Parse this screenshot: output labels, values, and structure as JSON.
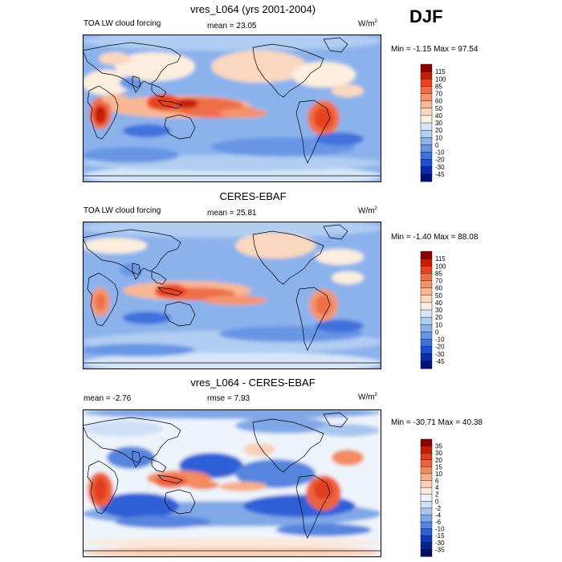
{
  "season": "DJF",
  "panels": [
    {
      "title": "vres_L064 (yrs 2001-2004)",
      "left_label": "TOA LW cloud forcing",
      "mean_label": "mean =  23.05",
      "unit_base": "W/m",
      "unit_exp": "2",
      "minmax": "Min =  -1.15 Max =  97.54",
      "levels": [
        "115",
        "100",
        "85",
        "70",
        "60",
        "50",
        "40",
        "30",
        "20",
        "10",
        "0",
        "-10",
        "-20",
        "-30",
        "-45"
      ],
      "colors": [
        "#8b0000",
        "#c81e00",
        "#e8421e",
        "#f06e46",
        "#f4946e",
        "#f8b895",
        "#fad7bf",
        "#fdeedf",
        "#d6e6f8",
        "#b1cdf2",
        "#8cb2ec",
        "#6795e4",
        "#3f71dc",
        "#1e4fd2",
        "#0a2ab0",
        "#00127a"
      ]
    },
    {
      "title": "CERES-EBAF",
      "left_label": "TOA LW cloud forcing",
      "mean_label": "mean =  25.81",
      "unit_base": "W/m",
      "unit_exp": "2",
      "minmax": "Min =  -1.40 Max =  88.08",
      "levels": [
        "115",
        "100",
        "85",
        "70",
        "60",
        "50",
        "40",
        "30",
        "20",
        "10",
        "0",
        "-10",
        "-20",
        "-30",
        "-45"
      ],
      "colors": [
        "#8b0000",
        "#c81e00",
        "#e8421e",
        "#f06e46",
        "#f4946e",
        "#f8b895",
        "#fad7bf",
        "#fdeedf",
        "#d6e6f8",
        "#b1cdf2",
        "#8cb2ec",
        "#6795e4",
        "#3f71dc",
        "#1e4fd2",
        "#0a2ab0",
        "#00127a"
      ]
    },
    {
      "title": "vres_L064 - CERES-EBAF",
      "left_label": "mean =  -2.76",
      "mean_label": "rmse =   7.93",
      "unit_base": "W/m",
      "unit_exp": "2",
      "minmax": "Min = -30.71 Max =  40.38",
      "levels": [
        "35",
        "30",
        "20",
        "15",
        "10",
        "6",
        "4",
        "2",
        "0",
        "-2",
        "-4",
        "-6",
        "-10",
        "-15",
        "-30",
        "-35"
      ],
      "colors": [
        "#8b0000",
        "#c81e00",
        "#e03c1e",
        "#ec623c",
        "#f28a62",
        "#f7ae8a",
        "#fbd0b6",
        "#fde8da",
        "#eef4fb",
        "#cfe0f6",
        "#a9c6ef",
        "#80a8e8",
        "#5685de",
        "#2d5fd6",
        "#123bbc",
        "#062190",
        "#00105c"
      ]
    }
  ]
}
